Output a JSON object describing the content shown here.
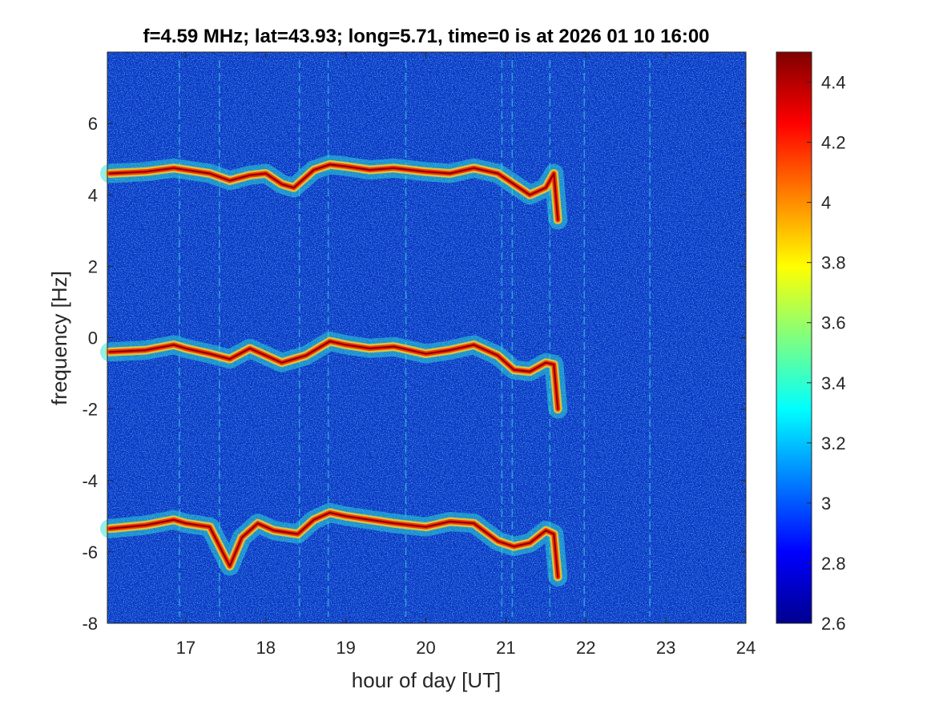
{
  "chart_data": {
    "type": "heatmap",
    "title": "f=4.59 MHz;  lat=43.93; long=5.71, time=0 is at 2026 01 10 16:00",
    "xlabel": "hour of day [UT]",
    "ylabel": "frequency [Hz]",
    "xlim": [
      16.02,
      24.0
    ],
    "ylim": [
      -8,
      8
    ],
    "xticks": [
      17,
      18,
      19,
      20,
      21,
      22,
      23,
      24
    ],
    "xtick_labels": [
      "17",
      "18",
      "19",
      "20",
      "21",
      "22",
      "23",
      "24"
    ],
    "yticks": [
      -8,
      -6,
      -4,
      -2,
      0,
      2,
      4,
      6
    ],
    "ytick_labels": [
      "-8",
      "-6",
      "-4",
      "-2",
      "0",
      "2",
      "4",
      "6"
    ],
    "colorbar": {
      "colormap": "jet",
      "limits": [
        2.6,
        4.5
      ],
      "ticks": [
        2.6,
        2.8,
        3,
        3.2,
        3.4,
        3.6,
        3.8,
        4,
        4.2,
        4.4
      ],
      "tick_labels": [
        "2.6",
        "2.8",
        "3",
        "3.2",
        "3.4",
        "3.6",
        "3.8",
        "4",
        "4.2",
        "4.4"
      ]
    },
    "background_level": 2.85,
    "traces": [
      {
        "x": [
          16.05,
          16.5,
          16.85,
          17.0,
          17.3,
          17.55,
          17.8,
          18.0,
          18.2,
          18.35,
          18.6,
          18.8,
          19.0,
          19.3,
          19.6,
          20.0,
          20.3,
          20.6,
          20.9,
          21.1,
          21.3,
          21.5,
          21.6,
          21.65
        ],
        "y": [
          4.6,
          4.65,
          4.75,
          4.7,
          4.6,
          4.4,
          4.55,
          4.6,
          4.3,
          4.2,
          4.7,
          4.85,
          4.8,
          4.7,
          4.75,
          4.65,
          4.6,
          4.75,
          4.6,
          4.3,
          4.0,
          4.2,
          4.6,
          3.3
        ]
      },
      {
        "x": [
          16.05,
          16.5,
          16.85,
          17.0,
          17.3,
          17.55,
          17.8,
          18.0,
          18.2,
          18.5,
          18.8,
          19.0,
          19.3,
          19.6,
          20.0,
          20.3,
          20.6,
          20.9,
          21.1,
          21.3,
          21.5,
          21.6,
          21.65
        ],
        "y": [
          -0.4,
          -0.35,
          -0.2,
          -0.3,
          -0.45,
          -0.6,
          -0.3,
          -0.5,
          -0.7,
          -0.5,
          -0.1,
          -0.2,
          -0.3,
          -0.25,
          -0.45,
          -0.35,
          -0.2,
          -0.5,
          -0.9,
          -0.95,
          -0.7,
          -0.75,
          -2.0
        ]
      },
      {
        "x": [
          16.05,
          16.5,
          16.85,
          17.0,
          17.3,
          17.55,
          17.7,
          17.9,
          18.1,
          18.4,
          18.6,
          18.8,
          19.0,
          19.3,
          19.6,
          20.0,
          20.3,
          20.6,
          20.9,
          21.1,
          21.3,
          21.5,
          21.6,
          21.65
        ],
        "y": [
          -5.35,
          -5.25,
          -5.1,
          -5.2,
          -5.3,
          -6.4,
          -5.6,
          -5.2,
          -5.4,
          -5.5,
          -5.1,
          -4.9,
          -5.0,
          -5.1,
          -5.2,
          -5.3,
          -5.15,
          -5.2,
          -5.7,
          -5.85,
          -5.75,
          -5.4,
          -5.5,
          -6.7
        ]
      }
    ],
    "spikes_x": [
      16.92,
      17.42,
      18.42,
      18.78,
      19.75,
      20.95,
      21.08,
      21.55,
      21.98,
      22.8
    ]
  }
}
